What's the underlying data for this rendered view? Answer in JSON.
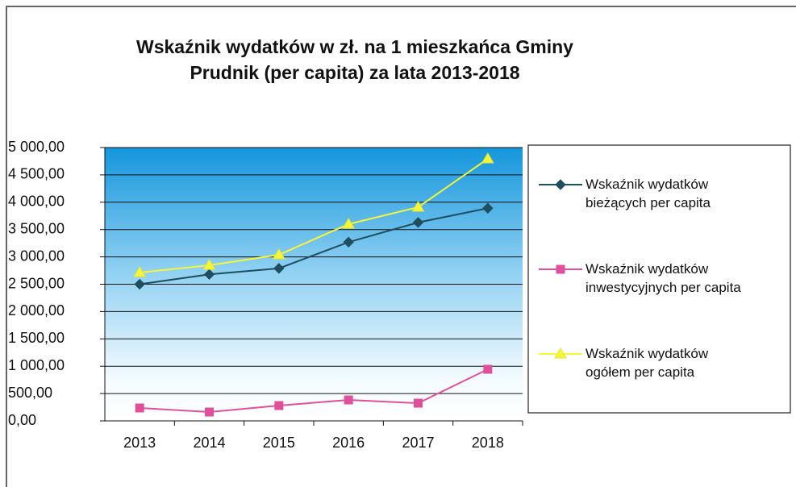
{
  "chart_data": {
    "type": "line",
    "title": "Wskaźnik wydatków w zł. na 1 mieszkańca Gminy Prudnik (per capita) za lata 2013-2018",
    "categories": [
      "2013",
      "2014",
      "2015",
      "2016",
      "2017",
      "2018"
    ],
    "series": [
      {
        "name": "Wskaźnik wydatków bieżących per capita",
        "color": "#1f4e5f",
        "values": [
          2500,
          2680,
          2790,
          3270,
          3630,
          3890
        ]
      },
      {
        "name": "Wskaźnik wydatków inwestycyjnych per capita",
        "color": "#e0509a",
        "values": [
          236,
          162,
          280,
          383,
          324,
          944
        ]
      },
      {
        "name": "Wskaźnik wydatków ogółem per capita",
        "color": "#f5f53a",
        "values": [
          2714,
          2847,
          3038,
          3599,
          3909,
          4794
        ]
      }
    ],
    "ylim": [
      0,
      5000
    ],
    "yticks": [
      {
        "value": 0,
        "label": "0,00"
      },
      {
        "value": 500,
        "label": "500,00"
      },
      {
        "value": 1000,
        "label": "1 000,00"
      },
      {
        "value": 1500,
        "label": "1 500,00"
      },
      {
        "value": 2000,
        "label": "2 000,00"
      },
      {
        "value": 2500,
        "label": "2 500,00"
      },
      {
        "value": 3000,
        "label": "3 000,00"
      },
      {
        "value": 3500,
        "label": "3 500,00"
      },
      {
        "value": 4000,
        "label": "4 000,00"
      },
      {
        "value": 4500,
        "label": "4 500,00"
      },
      {
        "value": 5000,
        "label": "5 000,00"
      }
    ],
    "grid": true,
    "legend": "right"
  }
}
